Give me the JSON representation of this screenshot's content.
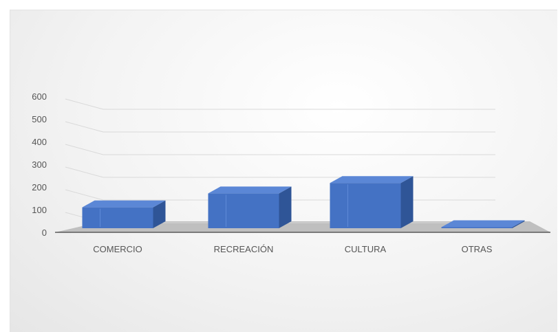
{
  "chart_data": {
    "type": "bar",
    "style": "3d-column",
    "categories": [
      "COMERCIO",
      "RECREACIÓN",
      "CULTURA",
      "OTRAS"
    ],
    "values": [
      120,
      200,
      260,
      5
    ],
    "ylim": [
      0,
      600
    ],
    "yticks": [
      0,
      100,
      200,
      300,
      400,
      500,
      600
    ],
    "ytick_labels": [
      "0",
      "100",
      "200",
      "300",
      "400",
      "500",
      "600"
    ],
    "grid": true,
    "legend": "none",
    "title": "",
    "xlabel": "",
    "ylabel": "",
    "colors": {
      "bar_front": "#4472c4",
      "bar_side": "#2f5597",
      "bar_top": "#5b87d6",
      "floor": "#bfbfbf",
      "axis_line": "#404040",
      "grid": "#d9d9d9"
    }
  }
}
